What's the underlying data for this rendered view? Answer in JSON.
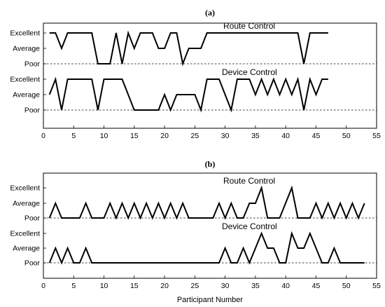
{
  "chart_data": [
    {
      "type": "line",
      "title": "(a)",
      "xlim": [
        0,
        55
      ],
      "xticks": [
        0,
        5,
        10,
        15,
        20,
        25,
        30,
        35,
        40,
        45,
        50,
        55
      ],
      "ytick_labels": [
        "Excellent",
        "Average",
        "Poor",
        "Excellent",
        "Average",
        "Poor"
      ],
      "series": [
        {
          "name": "Route Control",
          "points": [
            [
              1,
              2
            ],
            [
              2,
              2
            ],
            [
              3,
              1
            ],
            [
              4,
              2
            ],
            [
              8,
              2
            ],
            [
              9,
              0
            ],
            [
              11,
              0
            ],
            [
              12,
              2
            ],
            [
              13,
              0
            ],
            [
              14,
              2
            ],
            [
              15,
              1
            ],
            [
              16,
              2
            ],
            [
              18,
              2
            ],
            [
              19,
              1
            ],
            [
              20,
              1
            ],
            [
              21,
              2
            ],
            [
              22,
              2
            ],
            [
              23,
              0
            ],
            [
              24,
              1
            ],
            [
              26,
              1
            ],
            [
              27,
              2
            ],
            [
              42,
              2
            ],
            [
              43,
              0
            ],
            [
              44,
              2
            ],
            [
              47,
              2
            ]
          ]
        },
        {
          "name": "Device Control",
          "points": [
            [
              1,
              1
            ],
            [
              2,
              2
            ],
            [
              3,
              0
            ],
            [
              4,
              2
            ],
            [
              8,
              2
            ],
            [
              9,
              0
            ],
            [
              10,
              2
            ],
            [
              13,
              2
            ],
            [
              15,
              0
            ],
            [
              19,
              0
            ],
            [
              20,
              1
            ],
            [
              21,
              0
            ],
            [
              22,
              1
            ],
            [
              25,
              1
            ],
            [
              26,
              0
            ],
            [
              27,
              2
            ],
            [
              29,
              2
            ],
            [
              30,
              1
            ],
            [
              31,
              0
            ],
            [
              32,
              2
            ],
            [
              34,
              2
            ],
            [
              35,
              1
            ],
            [
              36,
              2
            ],
            [
              37,
              1
            ],
            [
              38,
              2
            ],
            [
              39,
              1
            ],
            [
              40,
              2
            ],
            [
              41,
              1
            ],
            [
              42,
              2
            ],
            [
              43,
              0
            ],
            [
              44,
              2
            ],
            [
              45,
              1
            ],
            [
              46,
              2
            ],
            [
              47,
              2
            ]
          ]
        }
      ]
    },
    {
      "type": "line",
      "title": "(b)",
      "xlabel": "Participant Number",
      "xlim": [
        0,
        55
      ],
      "xticks": [
        0,
        5,
        10,
        15,
        20,
        25,
        30,
        35,
        40,
        45,
        50,
        55
      ],
      "ytick_labels": [
        "Excellent",
        "Average",
        "Poor",
        "Excellent",
        "Average",
        "Poor"
      ],
      "series": [
        {
          "name": "Route Control",
          "points": [
            [
              1,
              0
            ],
            [
              2,
              1
            ],
            [
              3,
              0
            ],
            [
              6,
              0
            ],
            [
              7,
              1
            ],
            [
              8,
              0
            ],
            [
              10,
              0
            ],
            [
              11,
              1
            ],
            [
              12,
              0
            ],
            [
              13,
              1
            ],
            [
              14,
              0
            ],
            [
              15,
              1
            ],
            [
              16,
              0
            ],
            [
              17,
              1
            ],
            [
              18,
              0
            ],
            [
              19,
              1
            ],
            [
              20,
              0
            ],
            [
              21,
              1
            ],
            [
              22,
              0
            ],
            [
              23,
              1
            ],
            [
              24,
              0
            ],
            [
              28,
              0
            ],
            [
              29,
              1
            ],
            [
              30,
              0
            ],
            [
              31,
              1
            ],
            [
              32,
              0
            ],
            [
              33,
              0
            ],
            [
              34,
              1
            ],
            [
              35,
              1
            ],
            [
              36,
              2
            ],
            [
              37,
              0
            ],
            [
              39,
              0
            ],
            [
              41,
              2
            ],
            [
              42,
              0
            ],
            [
              44,
              0
            ],
            [
              45,
              1
            ],
            [
              46,
              0
            ],
            [
              47,
              1
            ],
            [
              48,
              0
            ],
            [
              49,
              1
            ],
            [
              50,
              0
            ],
            [
              51,
              1
            ],
            [
              52,
              0
            ],
            [
              53,
              1
            ]
          ]
        },
        {
          "name": "Device Control",
          "points": [
            [
              1,
              0
            ],
            [
              2,
              1
            ],
            [
              3,
              0
            ],
            [
              4,
              1
            ],
            [
              5,
              0
            ],
            [
              6,
              0
            ],
            [
              7,
              1
            ],
            [
              8,
              0
            ],
            [
              29,
              0
            ],
            [
              30,
              1
            ],
            [
              31,
              0
            ],
            [
              32,
              0
            ],
            [
              33,
              1
            ],
            [
              34,
              0
            ],
            [
              36,
              2
            ],
            [
              37,
              1
            ],
            [
              38,
              1
            ],
            [
              39,
              0
            ],
            [
              40,
              0
            ],
            [
              41,
              2
            ],
            [
              42,
              1
            ],
            [
              43,
              1
            ],
            [
              44,
              2
            ],
            [
              46,
              0
            ],
            [
              47,
              0
            ],
            [
              48,
              1
            ],
            [
              49,
              0
            ],
            [
              53,
              0
            ]
          ]
        }
      ]
    }
  ],
  "annotations": {
    "a_route": "Route Control",
    "a_device": "Device Control",
    "b_route": "Route Control",
    "b_device": "Device Control"
  }
}
